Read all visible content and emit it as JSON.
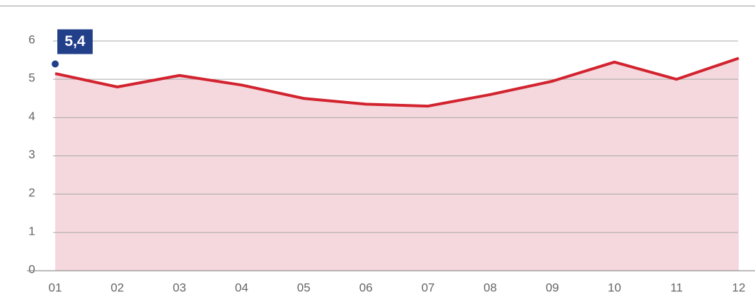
{
  "chart_data": {
    "type": "area",
    "categories": [
      "01",
      "02",
      "03",
      "04",
      "05",
      "06",
      "07",
      "08",
      "09",
      "10",
      "11",
      "12"
    ],
    "series": [
      {
        "color": "#d2232f",
        "fill": "#f4d8dd",
        "values": [
          5.15,
          4.8,
          5.1,
          4.85,
          4.5,
          4.35,
          4.3,
          4.6,
          4.95,
          5.45,
          5.0,
          5.55
        ]
      },
      {
        "color": "#223f8a",
        "values": [
          5.4,
          null,
          null,
          null,
          null,
          null,
          null,
          null,
          null,
          null,
          null,
          null
        ],
        "value_labels": [
          "5,4",
          null,
          null,
          null,
          null,
          null,
          null,
          null,
          null,
          null,
          null,
          null
        ]
      }
    ],
    "ylim": [
      0,
      6
    ],
    "yticks": [
      0,
      1,
      2,
      3,
      4,
      5,
      6
    ],
    "grid": true
  }
}
